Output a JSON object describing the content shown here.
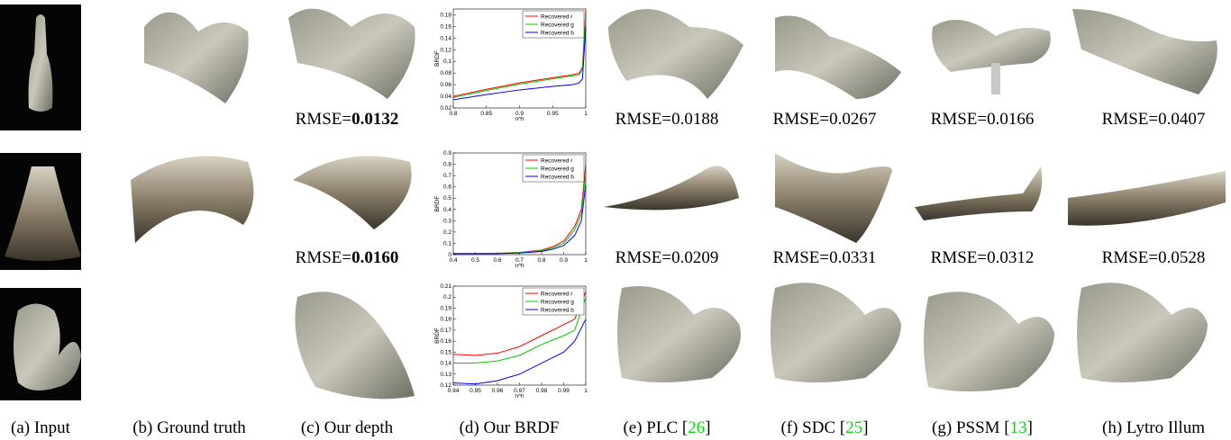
{
  "chart_data": [
    {
      "type": "line",
      "ylabel": "BRDF",
      "xlabel": "n^h",
      "x": [
        0.8,
        0.85,
        0.9,
        0.95,
        0.98,
        0.99,
        0.995,
        1
      ],
      "xlim": [
        0.8,
        1
      ],
      "xticks": [
        0.8,
        0.85,
        0.9,
        0.95,
        1
      ],
      "ylim": [
        0.02,
        0.19
      ],
      "yticks": [
        0.02,
        0.04,
        0.06,
        0.08,
        0.1,
        0.12,
        0.14,
        0.16,
        0.18
      ],
      "series": [
        {
          "name": "Recovered r",
          "color": "#ff0000",
          "values": [
            0.04,
            0.052,
            0.063,
            0.072,
            0.077,
            0.08,
            0.09,
            0.19
          ]
        },
        {
          "name": "Recovered g",
          "color": "#00cc00",
          "values": [
            0.038,
            0.05,
            0.061,
            0.07,
            0.075,
            0.077,
            0.085,
            0.18
          ]
        },
        {
          "name": "Recovered b",
          "color": "#0000ff",
          "values": [
            0.034,
            0.043,
            0.051,
            0.057,
            0.06,
            0.063,
            0.07,
            0.16
          ]
        }
      ]
    },
    {
      "type": "line",
      "ylabel": "BRDF",
      "xlabel": "n^h",
      "x": [
        0.4,
        0.5,
        0.6,
        0.7,
        0.8,
        0.85,
        0.9,
        0.95,
        0.98,
        1
      ],
      "xlim": [
        0.4,
        1
      ],
      "xticks": [
        0.4,
        0.5,
        0.6,
        0.7,
        0.8,
        0.9,
        1
      ],
      "ylim": [
        0,
        0.9
      ],
      "yticks": [
        0,
        0.1,
        0.2,
        0.3,
        0.4,
        0.5,
        0.6,
        0.7,
        0.8,
        0.9
      ],
      "series": [
        {
          "name": "Recovered r",
          "color": "#ff0000",
          "values": [
            0.01,
            0.01,
            0.012,
            0.02,
            0.04,
            0.07,
            0.12,
            0.25,
            0.4,
            0.8
          ]
        },
        {
          "name": "Recovered g",
          "color": "#00cc00",
          "values": [
            0.01,
            0.01,
            0.011,
            0.018,
            0.035,
            0.06,
            0.1,
            0.22,
            0.36,
            0.72
          ]
        },
        {
          "name": "Recovered b",
          "color": "#0000ff",
          "values": [
            0.008,
            0.008,
            0.009,
            0.014,
            0.028,
            0.048,
            0.08,
            0.17,
            0.3,
            0.62
          ]
        }
      ]
    },
    {
      "type": "line",
      "ylabel": "BRDF",
      "xlabel": "n^h",
      "x": [
        0.94,
        0.95,
        0.96,
        0.97,
        0.98,
        0.99,
        0.995,
        1
      ],
      "xlim": [
        0.94,
        1
      ],
      "xticks": [
        0.94,
        0.95,
        0.96,
        0.97,
        0.98,
        0.99,
        1
      ],
      "ylim": [
        0.12,
        0.21
      ],
      "yticks": [
        0.12,
        0.13,
        0.14,
        0.15,
        0.16,
        0.17,
        0.18,
        0.19,
        0.2,
        0.21
      ],
      "series": [
        {
          "name": "Recovered r",
          "color": "#ff0000",
          "values": [
            0.148,
            0.147,
            0.149,
            0.155,
            0.165,
            0.175,
            0.18,
            0.205
          ]
        },
        {
          "name": "Recovered g",
          "color": "#00cc00",
          "values": [
            0.14,
            0.14,
            0.142,
            0.147,
            0.157,
            0.165,
            0.17,
            0.2
          ]
        },
        {
          "name": "Recovered b",
          "color": "#0000ff",
          "values": [
            0.122,
            0.121,
            0.124,
            0.13,
            0.14,
            0.15,
            0.16,
            0.18
          ]
        }
      ]
    }
  ],
  "rmse_rows": [
    [
      {
        "prefix": "RMSE=",
        "value": "0.0132",
        "bold": true
      },
      {
        "prefix": "RMSE=",
        "value": "0.0188"
      },
      {
        "prefix": "RMSE=",
        "value": "0.0267"
      },
      {
        "prefix": "RMSE=",
        "value": "0.0166"
      },
      {
        "prefix": "RMSE=",
        "value": "0.0407"
      }
    ],
    [
      {
        "prefix": "RMSE=",
        "value": "0.0160",
        "bold": true
      },
      {
        "prefix": "RMSE=",
        "value": "0.0209"
      },
      {
        "prefix": "RMSE=",
        "value": "0.0331"
      },
      {
        "prefix": "RMSE=",
        "value": "0.0312"
      },
      {
        "prefix": "RMSE=",
        "value": "0.0528"
      }
    ]
  ],
  "captions": [
    {
      "text": "(a) Input"
    },
    {
      "text": "(b) Ground truth"
    },
    {
      "text": "(c) Our depth"
    },
    {
      "text": "(d) Our BRDF"
    },
    {
      "text": "(e) PLC [",
      "ref": "26",
      "end": "]"
    },
    {
      "text": "(f) SDC [",
      "ref": "25",
      "end": "]"
    },
    {
      "text": "(g) PSSM [",
      "ref": "13",
      "end": "]"
    },
    {
      "text": "(h) Lytro Illum"
    }
  ]
}
